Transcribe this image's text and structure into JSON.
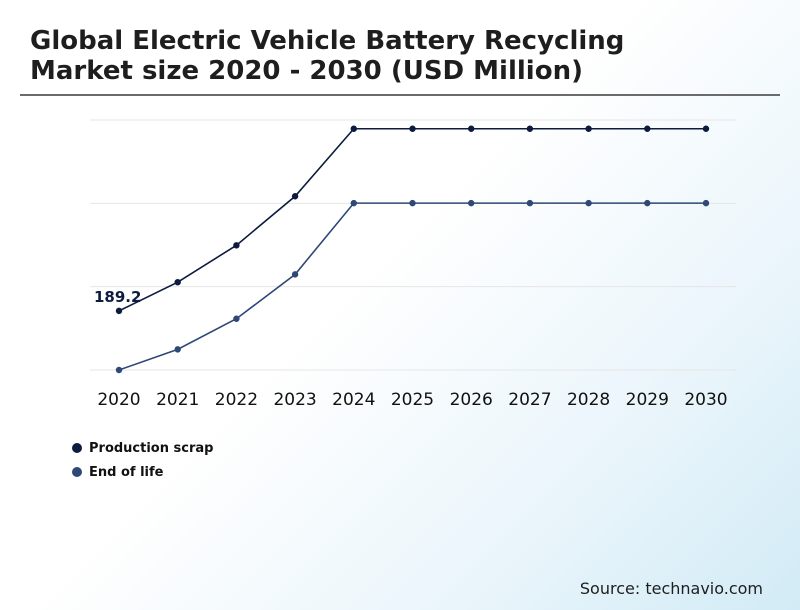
{
  "header": {
    "title": "Global Electric Vehicle Battery Recycling Market size 2020 - 2030 (USD Million)"
  },
  "chart_data": {
    "type": "line",
    "title": "Global Electric Vehicle Battery Recycling Market size 2020 - 2030 (USD Million)",
    "xlabel": "",
    "ylabel": "",
    "categories": [
      "2020",
      "2021",
      "2022",
      "2023",
      "2024",
      "2025",
      "2026",
      "2027",
      "2028",
      "2029",
      "2030"
    ],
    "ylim": [
      0,
      800
    ],
    "grid": true,
    "legend_position": "bottom-left",
    "series": [
      {
        "name": "Production scrap",
        "color": "#0d1b3e",
        "values": [
          189.2,
          281,
          399,
          556,
          772,
          772,
          772,
          772,
          772,
          772,
          772
        ]
      },
      {
        "name": "End of life",
        "color": "#2f4876",
        "values": [
          0,
          66,
          164,
          306,
          534,
          534,
          534,
          534,
          534,
          534,
          534
        ]
      }
    ],
    "annotations": [
      {
        "series": 0,
        "index": 0,
        "text": "189.2"
      }
    ]
  },
  "legend": {
    "items": [
      {
        "label": "Production scrap",
        "color": "#0d1b3e"
      },
      {
        "label": "End of life",
        "color": "#2f4876"
      }
    ]
  },
  "footer": {
    "source": "Source: technavio.com"
  }
}
